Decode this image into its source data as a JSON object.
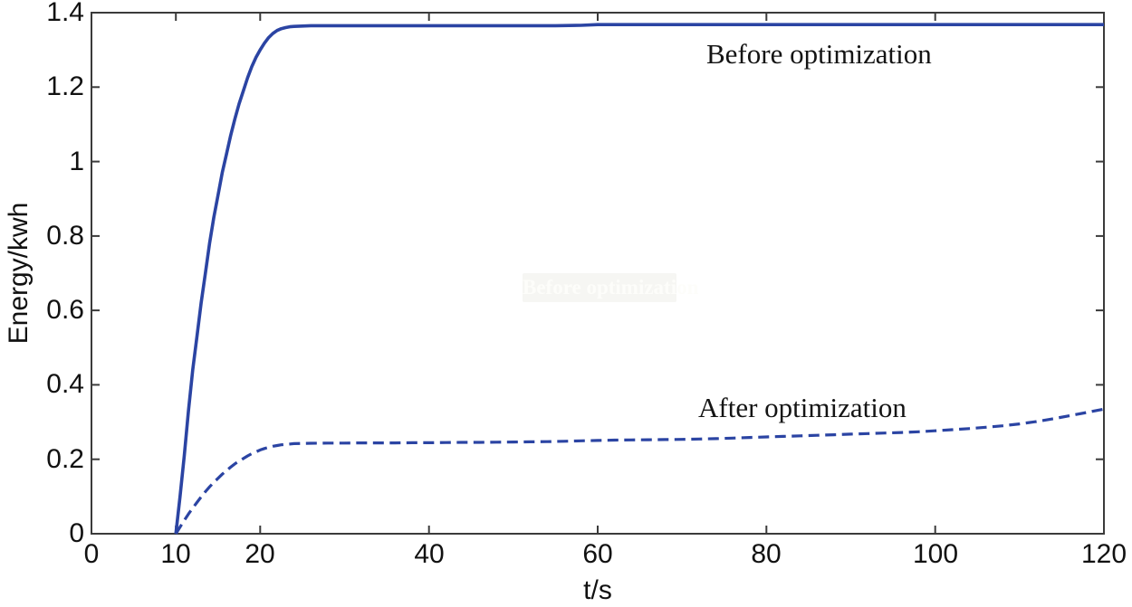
{
  "figure": {
    "background": "#ffffff",
    "axis_color": "#3b3b3b",
    "tick_label_color": "#111111",
    "line_color": "#2b44a3"
  },
  "chart_data": {
    "type": "line",
    "title": "",
    "xlabel": "t/s",
    "ylabel": "Energy/kwh",
    "xlim": [
      0,
      120
    ],
    "ylim": [
      0,
      1.4
    ],
    "grid": false,
    "legend_position": "none",
    "x_ticks": [
      {
        "v": 0,
        "label": "0"
      },
      {
        "v": 10,
        "label": "10"
      },
      {
        "v": 20,
        "label": "20"
      },
      {
        "v": 40,
        "label": "40"
      },
      {
        "v": 60,
        "label": "60"
      },
      {
        "v": 80,
        "label": "80"
      },
      {
        "v": 100,
        "label": "100"
      },
      {
        "v": 120,
        "label": "120"
      }
    ],
    "y_ticks": [
      {
        "v": 0,
        "label": "0"
      },
      {
        "v": 0.2,
        "label": "0.2"
      },
      {
        "v": 0.4,
        "label": "0.4"
      },
      {
        "v": 0.6,
        "label": "0.6"
      },
      {
        "v": 0.8,
        "label": "0.8"
      },
      {
        "v": 1.0,
        "label": "1"
      },
      {
        "v": 1.2,
        "label": "1.2"
      },
      {
        "v": 1.4,
        "label": "1.4"
      }
    ],
    "annotations": {
      "before": "Before optimization",
      "after": "After optimization",
      "ghost": "Before optimization"
    },
    "series": [
      {
        "name": "Before optimization",
        "style": "solid",
        "color": "#2b44a3",
        "stroke_width": 3.6,
        "points": [
          [
            10,
            0
          ],
          [
            10.5,
            0.1
          ],
          [
            11,
            0.21
          ],
          [
            11.5,
            0.33
          ],
          [
            12,
            0.44
          ],
          [
            12.5,
            0.53
          ],
          [
            13,
            0.62
          ],
          [
            13.5,
            0.7
          ],
          [
            14,
            0.78
          ],
          [
            14.5,
            0.85
          ],
          [
            15,
            0.91
          ],
          [
            15.5,
            0.97
          ],
          [
            16,
            1.02
          ],
          [
            16.5,
            1.07
          ],
          [
            17,
            1.115
          ],
          [
            17.5,
            1.155
          ],
          [
            18,
            1.19
          ],
          [
            18.5,
            1.225
          ],
          [
            19,
            1.255
          ],
          [
            19.5,
            1.28
          ],
          [
            20,
            1.3
          ],
          [
            20.5,
            1.318
          ],
          [
            21,
            1.333
          ],
          [
            21.5,
            1.344
          ],
          [
            22,
            1.352
          ],
          [
            22.5,
            1.357
          ],
          [
            23,
            1.36
          ],
          [
            23.5,
            1.362
          ],
          [
            24,
            1.363
          ],
          [
            25,
            1.364
          ],
          [
            26,
            1.365
          ],
          [
            30,
            1.365
          ],
          [
            35,
            1.365
          ],
          [
            40,
            1.365
          ],
          [
            45,
            1.365
          ],
          [
            50,
            1.365
          ],
          [
            55,
            1.365
          ],
          [
            58,
            1.366
          ],
          [
            60,
            1.368
          ],
          [
            70,
            1.368
          ],
          [
            80,
            1.368
          ],
          [
            90,
            1.368
          ],
          [
            100,
            1.368
          ],
          [
            110,
            1.368
          ],
          [
            120,
            1.368
          ]
        ]
      },
      {
        "name": "After optimization",
        "style": "dashed",
        "color": "#2b44a3",
        "stroke_width": 3.2,
        "dash": [
          12,
          6.5
        ],
        "points": [
          [
            10,
            0
          ],
          [
            10.5,
            0.018
          ],
          [
            11,
            0.036
          ],
          [
            11.5,
            0.053
          ],
          [
            12,
            0.069
          ],
          [
            12.5,
            0.084
          ],
          [
            13,
            0.099
          ],
          [
            13.5,
            0.113
          ],
          [
            14,
            0.126
          ],
          [
            14.5,
            0.138
          ],
          [
            15,
            0.149
          ],
          [
            15.5,
            0.16
          ],
          [
            16,
            0.17
          ],
          [
            16.5,
            0.179
          ],
          [
            17,
            0.188
          ],
          [
            17.5,
            0.195
          ],
          [
            18,
            0.202
          ],
          [
            18.5,
            0.209
          ],
          [
            19,
            0.215
          ],
          [
            19.5,
            0.22
          ],
          [
            20,
            0.225
          ],
          [
            20.5,
            0.229
          ],
          [
            21,
            0.232
          ],
          [
            21.5,
            0.235
          ],
          [
            22,
            0.237
          ],
          [
            22.5,
            0.239
          ],
          [
            23,
            0.24
          ],
          [
            24,
            0.242
          ],
          [
            25,
            0.2425
          ],
          [
            26,
            0.243
          ],
          [
            28,
            0.2435
          ],
          [
            30,
            0.2435
          ],
          [
            32,
            0.244
          ],
          [
            34,
            0.244
          ],
          [
            36,
            0.244
          ],
          [
            38,
            0.2445
          ],
          [
            40,
            0.2445
          ],
          [
            42,
            0.245
          ],
          [
            44,
            0.2455
          ],
          [
            46,
            0.2455
          ],
          [
            48,
            0.246
          ],
          [
            50,
            0.2465
          ],
          [
            52,
            0.247
          ],
          [
            54,
            0.2475
          ],
          [
            56,
            0.2485
          ],
          [
            58,
            0.2495
          ],
          [
            60,
            0.2505
          ],
          [
            62,
            0.2515
          ],
          [
            64,
            0.252
          ],
          [
            66,
            0.2525
          ],
          [
            68,
            0.253
          ],
          [
            70,
            0.2535
          ],
          [
            72,
            0.2545
          ],
          [
            74,
            0.2555
          ],
          [
            76,
            0.257
          ],
          [
            78,
            0.2585
          ],
          [
            80,
            0.26
          ],
          [
            82,
            0.2615
          ],
          [
            84,
            0.263
          ],
          [
            86,
            0.2645
          ],
          [
            88,
            0.266
          ],
          [
            90,
            0.2675
          ],
          [
            92,
            0.269
          ],
          [
            94,
            0.2705
          ],
          [
            96,
            0.272
          ],
          [
            98,
            0.274
          ],
          [
            100,
            0.2765
          ],
          [
            102,
            0.2795
          ],
          [
            104,
            0.2825
          ],
          [
            106,
            0.286
          ],
          [
            108,
            0.29
          ],
          [
            110,
            0.295
          ],
          [
            112,
            0.3015
          ],
          [
            114,
            0.309
          ],
          [
            116,
            0.3175
          ],
          [
            118,
            0.326
          ],
          [
            120,
            0.335
          ]
        ]
      }
    ]
  }
}
